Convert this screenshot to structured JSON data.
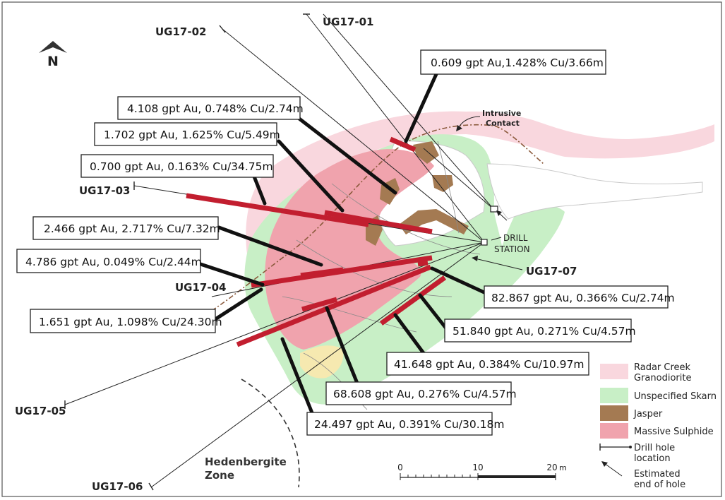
{
  "north_arrow": {
    "letter": "N"
  },
  "drill_holes": [
    "UG17-01",
    "UG17-02",
    "UG17-03",
    "UG17-04",
    "UG17-05",
    "UG17-06",
    "UG17-07"
  ],
  "intercepts": [
    "0.609 gpt Au,1.428% Cu/3.66m",
    "4.108 gpt Au, 0.748% Cu/2.74m",
    "1.702 gpt Au, 1.625% Cu/5.49m",
    "0.700 gpt Au, 0.163% Cu/34.75m",
    "2.466 gpt Au, 2.717% Cu/7.32m",
    "4.786 gpt Au, 0.049% Cu/2.44m",
    "1.651 gpt Au, 1.098% Cu/24.30m",
    "82.867 gpt Au, 0.366% Cu/2.74m",
    "51.840 gpt Au, 0.271% Cu/4.57m",
    "41.648 gpt Au, 0.384% Cu/10.97m",
    "68.608 gpt Au, 0.276% Cu/4.57m",
    "24.497 gpt Au, 0.391% Cu/30.18m"
  ],
  "annotations": {
    "intrusive_contact": [
      "Intrusive",
      "Contact"
    ],
    "drill_station": [
      "DRILL",
      "STATION"
    ],
    "hedenbergite_zone": [
      "Hedenbergite",
      "Zone"
    ]
  },
  "scale_bar": {
    "ticks": [
      "0",
      "10",
      "20"
    ],
    "unit": "m"
  },
  "legend": {
    "items": [
      {
        "label": [
          "Radar Creek",
          "Granodiorite"
        ],
        "color": "#f9d7de"
      },
      {
        "label": [
          "Unspecified Skarn"
        ],
        "color": "#c8efc6"
      },
      {
        "label": [
          "Jasper"
        ],
        "color": "#a47a52"
      },
      {
        "label": [
          "Massive Sulphide"
        ],
        "color": "#f0a3ad"
      }
    ],
    "drill_hole_location": [
      "Drill hole",
      "location"
    ],
    "end_of_hole": [
      "Estimated",
      "end of hole"
    ]
  },
  "colors": {
    "granodiorite": "#f9d7de",
    "skarn": "#c8efc6",
    "jasper": "#a47a52",
    "massive_sulphide": "#f0a3ad",
    "intercept": "#c21e2f",
    "yellow_zone": "#f6e9b0"
  }
}
